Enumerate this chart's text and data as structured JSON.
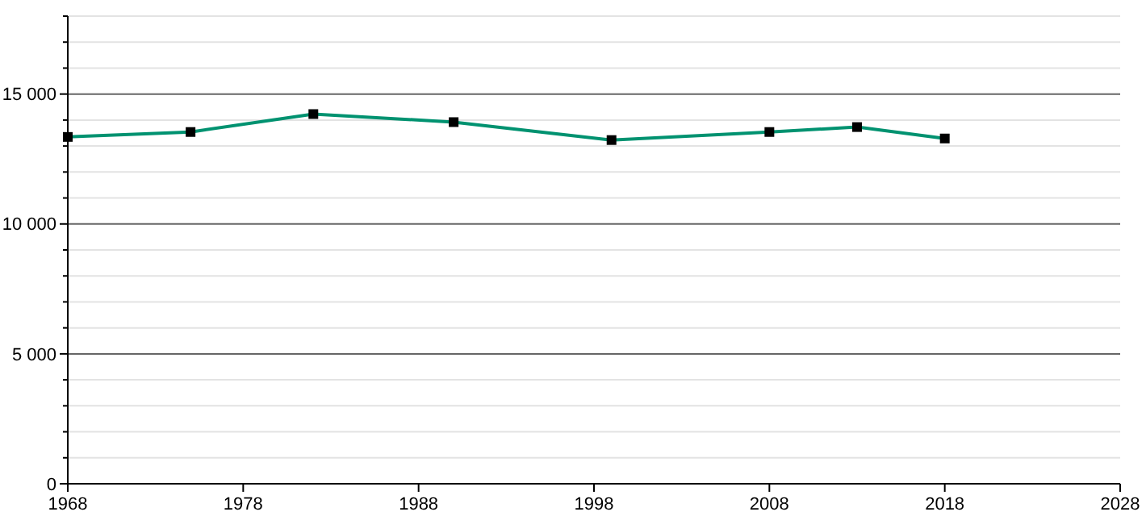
{
  "chart_data": {
    "type": "line",
    "x": [
      1968,
      1975,
      1982,
      1990,
      1999,
      2008,
      2013,
      2018
    ],
    "series": [
      {
        "color": "#009270",
        "values": [
          13350,
          13540,
          14230,
          13920,
          13230,
          13540,
          13730,
          13290
        ]
      }
    ],
    "xlim": [
      1968,
      2028
    ],
    "xticks": [
      1968,
      1978,
      1988,
      1998,
      2008,
      2018,
      2028
    ],
    "ylim": [
      0,
      18000
    ],
    "yticks": [
      {
        "value": 0,
        "label": "0"
      },
      {
        "value": 1000,
        "label": null
      },
      {
        "value": 2000,
        "label": null
      },
      {
        "value": 3000,
        "label": null
      },
      {
        "value": 4000,
        "label": null
      },
      {
        "value": 5000,
        "label": "5 000"
      },
      {
        "value": 6000,
        "label": null
      },
      {
        "value": 7000,
        "label": null
      },
      {
        "value": 8000,
        "label": null
      },
      {
        "value": 9000,
        "label": null
      },
      {
        "value": 10000,
        "label": "10 000"
      },
      {
        "value": 11000,
        "label": null
      },
      {
        "value": 12000,
        "label": null
      },
      {
        "value": 13000,
        "label": null
      },
      {
        "value": 14000,
        "label": null
      },
      {
        "value": 15000,
        "label": "15 000"
      },
      {
        "value": 16000,
        "label": null
      },
      {
        "value": 17000,
        "label": null
      },
      {
        "value": 18000,
        "label": null
      }
    ],
    "grid": "y",
    "marker": "square",
    "line_style": "solid"
  }
}
